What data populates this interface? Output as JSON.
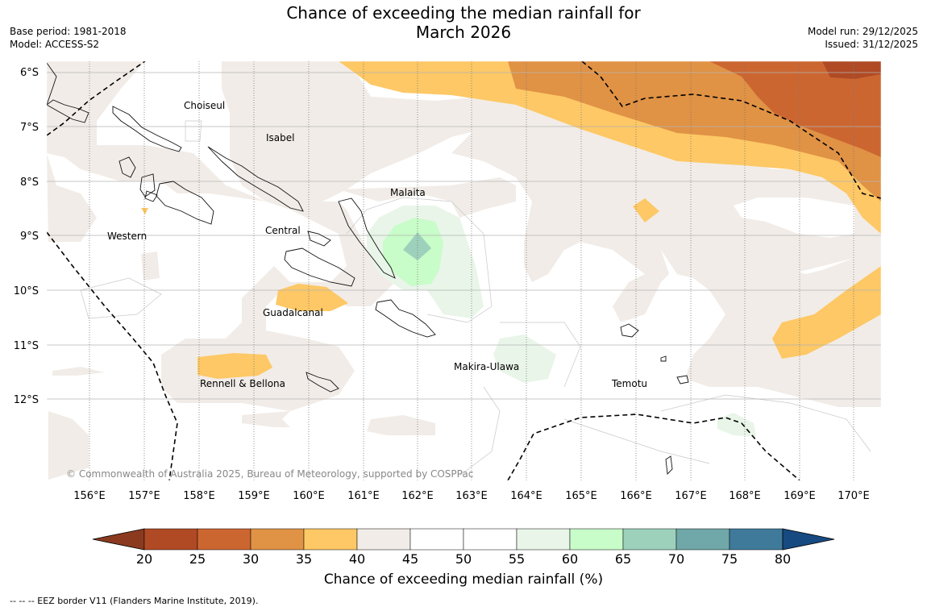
{
  "header": {
    "title_line1": "Chance of exceeding the median rainfall for",
    "title_line2": "March 2026",
    "base_period": "Base period: 1981-2018",
    "model": "Model: ACCESS-S2",
    "model_run": "Model run: 29/12/2025",
    "issued": "Issued: 31/12/2025"
  },
  "map": {
    "lat_labels": [
      "6°S",
      "7°S",
      "8°S",
      "9°S",
      "10°S",
      "11°S",
      "12°S"
    ],
    "lon_labels": [
      "156°E",
      "157°E",
      "158°E",
      "159°E",
      "160°E",
      "161°E",
      "162°E",
      "163°E",
      "164°E",
      "165°E",
      "166°E",
      "167°E",
      "168°E",
      "169°E",
      "170°E"
    ],
    "places": [
      "Choiseul",
      "Isabel",
      "Malaita",
      "Central",
      "Western",
      "Guadalcanal",
      "Makira-Ulawa",
      "Rennell & Bellona",
      "Temotu"
    ],
    "copyright": "© Commonwealth of Australia 2025, Bureau of Meteorology, supported by COSPPac"
  },
  "colorbar": {
    "ticks": [
      "20",
      "25",
      "30",
      "35",
      "40",
      "45",
      "50",
      "55",
      "60",
      "65",
      "70",
      "75",
      "80"
    ],
    "colors": [
      "#8b3a1f",
      "#b04a25",
      "#cc6631",
      "#e09245",
      "#fdc865",
      "#f1ece7",
      "#ffffff",
      "#ffffff",
      "#e8f5e8",
      "#c8fcc8",
      "#9dd1bc",
      "#70a7a8",
      "#3f7a9b",
      "#174a80"
    ],
    "label": "Chance of exceeding median rainfall (%)"
  },
  "footer": "--  --  -- EEZ border V11 (Flanders Marine Institute, 2019)."
}
